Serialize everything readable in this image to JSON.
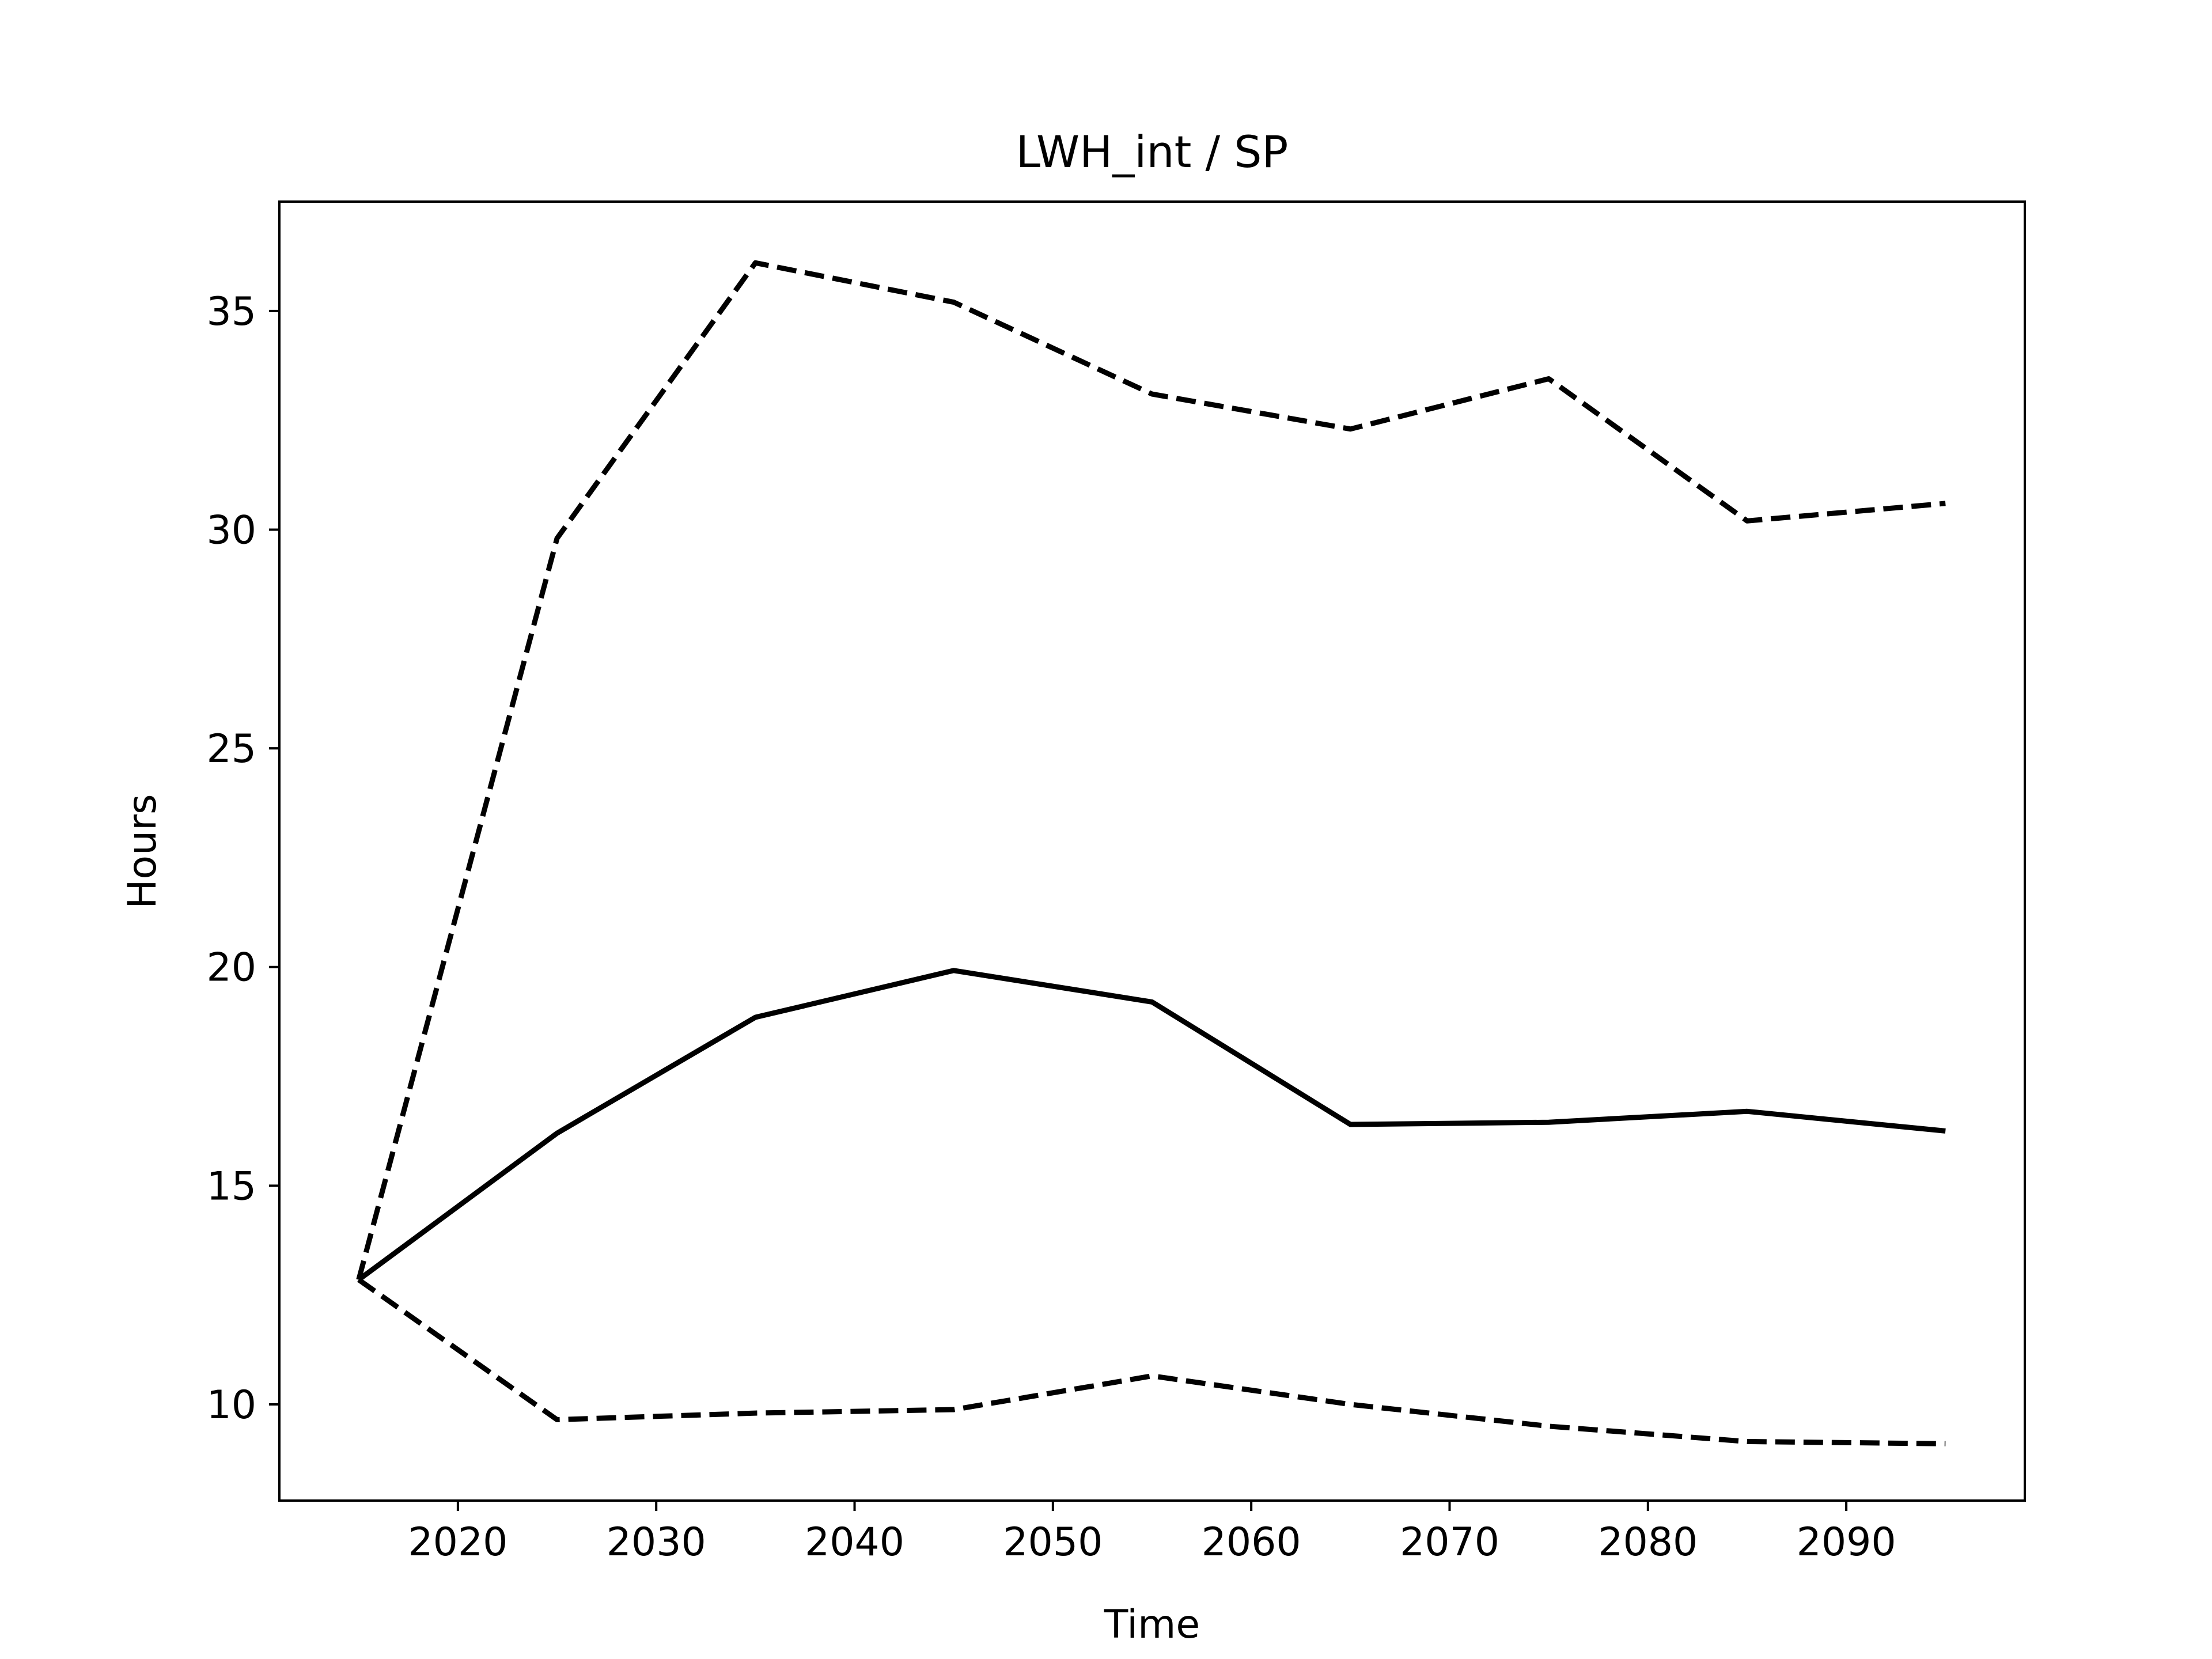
{
  "chart_data": {
    "type": "line",
    "title": "LWH_int / SP",
    "xlabel": "Time",
    "ylabel": "Hours",
    "xlim": [
      2011,
      2099
    ],
    "ylim": [
      7.8,
      37.5
    ],
    "xticks": [
      2020,
      2030,
      2040,
      2050,
      2060,
      2070,
      2080,
      2090
    ],
    "yticks": [
      10,
      15,
      20,
      25,
      30,
      35
    ],
    "grid": false,
    "x": [
      2015,
      2025,
      2035,
      2045,
      2055,
      2065,
      2075,
      2085,
      2095
    ],
    "series": [
      {
        "values": [
          12.85,
          29.8,
          36.1,
          35.2,
          33.1,
          32.3,
          33.45,
          30.2,
          30.6
        ],
        "style": "dashed",
        "color": "#000000"
      },
      {
        "values": [
          12.85,
          16.2,
          18.85,
          19.92,
          19.2,
          16.4,
          16.45,
          16.7,
          16.25
        ],
        "style": "solid",
        "color": "#000000"
      },
      {
        "values": [
          12.85,
          9.65,
          9.8,
          9.88,
          10.65,
          10.0,
          9.5,
          9.15,
          9.1
        ],
        "style": "dashed",
        "color": "#000000"
      }
    ]
  }
}
